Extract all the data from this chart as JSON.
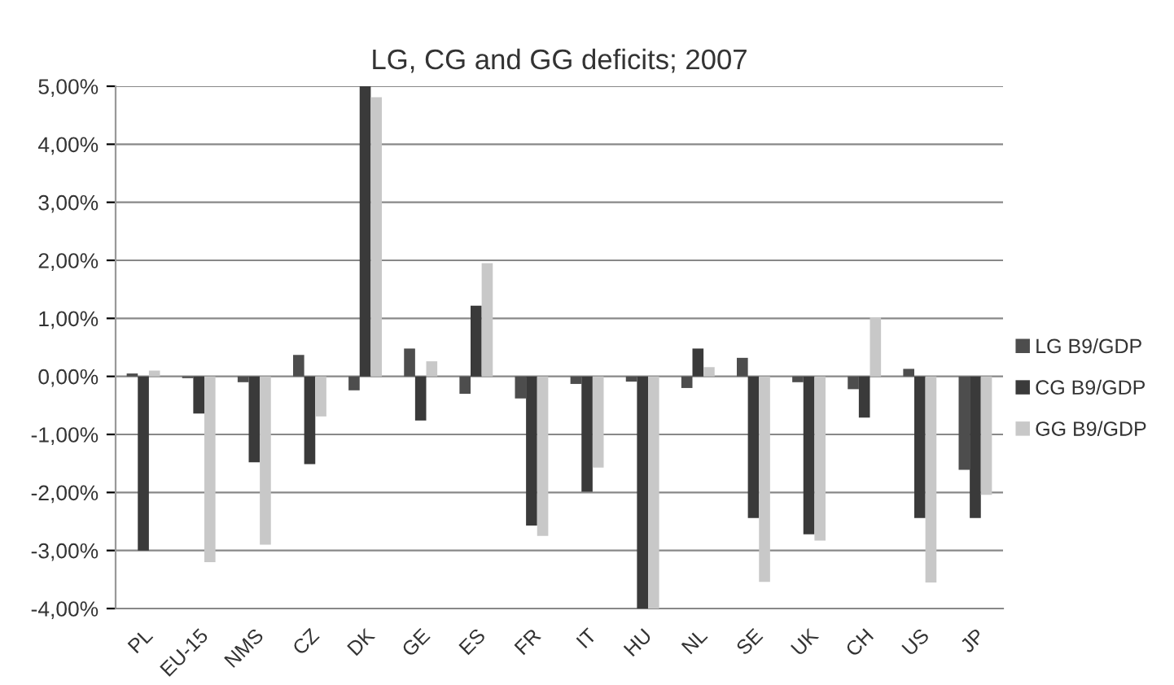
{
  "chart_data": {
    "type": "bar",
    "title": "LG, CG and GG deficits; 2007",
    "categories": [
      "PL",
      "EU-15",
      "NMS",
      "CZ",
      "DK",
      "GE",
      "ES",
      "FR",
      "IT",
      "HU",
      "NL",
      "SE",
      "UK",
      "CH",
      "US",
      "JP"
    ],
    "series": [
      {
        "name": "LG B9/GDP",
        "color": "#4d4d4d",
        "values": [
          0.05,
          -0.03,
          -0.1,
          0.37,
          -0.24,
          0.48,
          -0.3,
          -0.38,
          -0.13,
          -0.09,
          -0.2,
          0.32,
          -0.1,
          -0.22,
          0.13,
          -1.61
        ]
      },
      {
        "name": "CG B9/GDP",
        "color": "#3a3a3a",
        "values": [
          -3.0,
          -0.64,
          -1.48,
          -1.51,
          5.0,
          -0.76,
          1.22,
          -2.57,
          -1.99,
          -4.0,
          0.48,
          -2.44,
          -2.72,
          -0.71,
          -2.44,
          -2.44
        ]
      },
      {
        "name": "GG B9/GDP",
        "color": "#c8c8c8",
        "values": [
          0.1,
          -3.2,
          -2.9,
          -0.69,
          4.81,
          0.26,
          1.95,
          -2.75,
          -1.57,
          -4.0,
          0.16,
          -3.54,
          -2.83,
          1.02,
          -3.55,
          -2.04
        ]
      }
    ],
    "ylim": [
      -4,
      5
    ],
    "yticks": [
      {
        "value": -4,
        "label": "-4,00%"
      },
      {
        "value": -3,
        "label": "-3,00%"
      },
      {
        "value": -2,
        "label": "-2,00%"
      },
      {
        "value": -1,
        "label": "-1,00%"
      },
      {
        "value": 0,
        "label": "0,00%"
      },
      {
        "value": 1,
        "label": "1,00%"
      },
      {
        "value": 2,
        "label": "2,00%"
      },
      {
        "value": 3,
        "label": "3,00%"
      },
      {
        "value": 4,
        "label": "4,00%"
      },
      {
        "value": 5,
        "label": "5,00%"
      }
    ],
    "grid": "y",
    "legend": "right"
  }
}
